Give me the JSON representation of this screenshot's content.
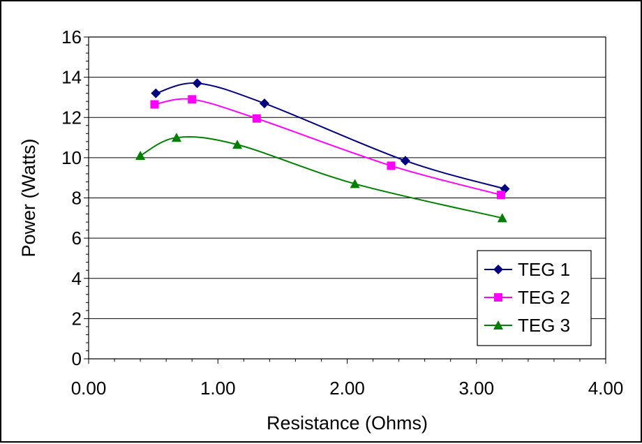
{
  "chart_data": {
    "type": "line",
    "smooth": true,
    "title": "",
    "xlabel": "Resistance (Ohms)",
    "ylabel": "Power (Watts)",
    "xlim": [
      0,
      4
    ],
    "ylim": [
      0,
      16
    ],
    "x_ticks": [
      "0.00",
      "1.00",
      "2.00",
      "3.00",
      "4.00"
    ],
    "y_ticks": [
      "0",
      "2",
      "4",
      "6",
      "8",
      "10",
      "12",
      "14",
      "16"
    ],
    "grid": "horizontal major gridlines",
    "legend_position": "bottom-right",
    "series": [
      {
        "name": "TEG 1",
        "color": "#000080",
        "marker": "diamond",
        "points": [
          [
            0.52,
            13.2
          ],
          [
            0.84,
            13.7
          ],
          [
            1.36,
            12.7
          ],
          [
            2.45,
            9.85
          ],
          [
            3.22,
            8.45
          ]
        ]
      },
      {
        "name": "TEG 2",
        "color": "#FF00FF",
        "marker": "square",
        "points": [
          [
            0.51,
            12.65
          ],
          [
            0.8,
            12.9
          ],
          [
            1.3,
            11.95
          ],
          [
            2.34,
            9.6
          ],
          [
            3.19,
            8.15
          ]
        ]
      },
      {
        "name": "TEG 3",
        "color": "#008000",
        "marker": "triangle",
        "points": [
          [
            0.4,
            10.1
          ],
          [
            0.68,
            11.0
          ],
          [
            1.15,
            10.65
          ],
          [
            2.06,
            8.7
          ],
          [
            3.2,
            7.0
          ]
        ]
      }
    ]
  }
}
